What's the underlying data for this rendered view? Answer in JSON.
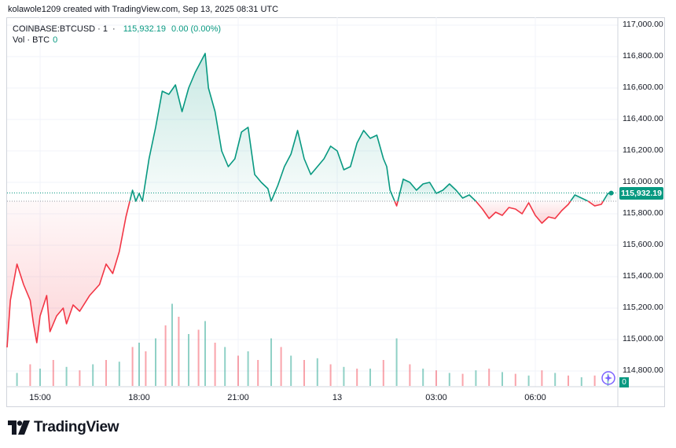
{
  "header": {
    "attribution": "kolawole1209 created with TradingView.com, Sep 13, 2025 08:31 UTC"
  },
  "legend": {
    "symbol": "COINBASE:BTCUSD",
    "interval": "1",
    "price": "115,932.19",
    "change": "0.00 (0.00%)",
    "volume_label": "Vol · BTC",
    "volume_value": "0"
  },
  "price_badge": "115,932.19",
  "volume_badge": "0",
  "branding": {
    "name": "TradingView",
    "logo": "tradingview-logo-icon"
  },
  "colors": {
    "up": "#089981",
    "down": "#f23645",
    "grid": "#f0f3fa",
    "text": "#131722"
  },
  "chart_data": {
    "type": "line",
    "title": "",
    "xlabel": "",
    "ylabel": "",
    "x_tick_labels": [
      "15:00",
      "18:00",
      "21:00",
      "13",
      "03:00",
      "06:00"
    ],
    "x_tick_hours": [
      1,
      4,
      7,
      10,
      13,
      16
    ],
    "y_tick_labels": [
      "117,000.00",
      "116,800.00",
      "116,600.00",
      "116,400.00",
      "116,200.00",
      "116,000.00",
      "115,800.00",
      "115,600.00",
      "115,400.00",
      "115,200.00",
      "115,000.00",
      "114,800.00"
    ],
    "y_ticks": [
      117000,
      116800,
      116600,
      116400,
      116200,
      116000,
      115800,
      115600,
      115400,
      115200,
      115000,
      114800
    ],
    "ylim": [
      114700,
      117050
    ],
    "xlim": [
      0,
      18.5
    ],
    "baseline": 115880,
    "last_price": 115932.19,
    "series": [
      {
        "values": [
          [
            0.0,
            114950
          ],
          [
            0.1,
            115250
          ],
          [
            0.3,
            115480
          ],
          [
            0.5,
            115350
          ],
          [
            0.7,
            115250
          ],
          [
            0.8,
            115100
          ],
          [
            0.9,
            114980
          ],
          [
            1.0,
            115150
          ],
          [
            1.2,
            115280
          ],
          [
            1.3,
            115050
          ],
          [
            1.5,
            115150
          ],
          [
            1.7,
            115200
          ],
          [
            1.8,
            115100
          ],
          [
            2.0,
            115220
          ],
          [
            2.2,
            115180
          ],
          [
            2.5,
            115280
          ],
          [
            2.8,
            115350
          ],
          [
            3.0,
            115480
          ],
          [
            3.2,
            115420
          ],
          [
            3.4,
            115560
          ],
          [
            3.6,
            115780
          ],
          [
            3.8,
            115950
          ],
          [
            3.9,
            115880
          ],
          [
            4.0,
            115930
          ],
          [
            4.1,
            115880
          ],
          [
            4.3,
            116150
          ],
          [
            4.5,
            116350
          ],
          [
            4.7,
            116580
          ],
          [
            4.9,
            116560
          ],
          [
            5.1,
            116620
          ],
          [
            5.3,
            116450
          ],
          [
            5.5,
            116600
          ],
          [
            5.7,
            116700
          ],
          [
            5.9,
            116780
          ],
          [
            6.0,
            116820
          ],
          [
            6.1,
            116600
          ],
          [
            6.3,
            116450
          ],
          [
            6.5,
            116200
          ],
          [
            6.7,
            116100
          ],
          [
            6.9,
            116150
          ],
          [
            7.1,
            116320
          ],
          [
            7.3,
            116350
          ],
          [
            7.5,
            116050
          ],
          [
            7.7,
            116000
          ],
          [
            7.9,
            115960
          ],
          [
            8.0,
            115880
          ],
          [
            8.2,
            115980
          ],
          [
            8.4,
            116100
          ],
          [
            8.6,
            116180
          ],
          [
            8.8,
            116330
          ],
          [
            9.0,
            116150
          ],
          [
            9.2,
            116050
          ],
          [
            9.4,
            116100
          ],
          [
            9.6,
            116150
          ],
          [
            9.8,
            116230
          ],
          [
            10.0,
            116200
          ],
          [
            10.2,
            116080
          ],
          [
            10.4,
            116100
          ],
          [
            10.6,
            116250
          ],
          [
            10.8,
            116330
          ],
          [
            11.0,
            116280
          ],
          [
            11.2,
            116300
          ],
          [
            11.4,
            116150
          ],
          [
            11.5,
            116100
          ],
          [
            11.6,
            115950
          ],
          [
            11.8,
            115850
          ],
          [
            12.0,
            116020
          ],
          [
            12.2,
            116000
          ],
          [
            12.4,
            115950
          ],
          [
            12.6,
            115990
          ],
          [
            12.8,
            116000
          ],
          [
            13.0,
            115930
          ],
          [
            13.2,
            115950
          ],
          [
            13.4,
            115990
          ],
          [
            13.6,
            115950
          ],
          [
            13.8,
            115900
          ],
          [
            14.0,
            115920
          ],
          [
            14.2,
            115880
          ],
          [
            14.4,
            115830
          ],
          [
            14.6,
            115770
          ],
          [
            14.8,
            115810
          ],
          [
            15.0,
            115790
          ],
          [
            15.2,
            115840
          ],
          [
            15.4,
            115830
          ],
          [
            15.6,
            115800
          ],
          [
            15.8,
            115870
          ],
          [
            16.0,
            115790
          ],
          [
            16.2,
            115740
          ],
          [
            16.4,
            115780
          ],
          [
            16.6,
            115770
          ],
          [
            16.8,
            115820
          ],
          [
            17.0,
            115860
          ],
          [
            17.2,
            115920
          ],
          [
            17.4,
            115900
          ],
          [
            17.6,
            115880
          ],
          [
            17.8,
            115850
          ],
          [
            18.0,
            115860
          ],
          [
            18.2,
            115930
          ],
          [
            18.3,
            115932
          ]
        ]
      }
    ],
    "volume": {
      "max_height_hint": "relative",
      "bars": [
        [
          0.3,
          0.15
        ],
        [
          0.7,
          0.25
        ],
        [
          1.0,
          0.2
        ],
        [
          1.4,
          0.3
        ],
        [
          1.8,
          0.22
        ],
        [
          2.2,
          0.18
        ],
        [
          2.6,
          0.25
        ],
        [
          3.0,
          0.3
        ],
        [
          3.4,
          0.28
        ],
        [
          3.8,
          0.45
        ],
        [
          4.0,
          0.5
        ],
        [
          4.2,
          0.4
        ],
        [
          4.5,
          0.55
        ],
        [
          4.8,
          0.7
        ],
        [
          5.0,
          0.95
        ],
        [
          5.2,
          0.8
        ],
        [
          5.5,
          0.6
        ],
        [
          5.8,
          0.65
        ],
        [
          6.0,
          0.75
        ],
        [
          6.3,
          0.5
        ],
        [
          6.6,
          0.45
        ],
        [
          7.0,
          0.35
        ],
        [
          7.3,
          0.4
        ],
        [
          7.6,
          0.3
        ],
        [
          8.0,
          0.55
        ],
        [
          8.3,
          0.45
        ],
        [
          8.6,
          0.35
        ],
        [
          9.0,
          0.3
        ],
        [
          9.4,
          0.32
        ],
        [
          9.8,
          0.25
        ],
        [
          10.2,
          0.22
        ],
        [
          10.6,
          0.2
        ],
        [
          11.0,
          0.2
        ],
        [
          11.4,
          0.3
        ],
        [
          11.8,
          0.55
        ],
        [
          12.2,
          0.25
        ],
        [
          12.6,
          0.2
        ],
        [
          13.0,
          0.18
        ],
        [
          13.4,
          0.15
        ],
        [
          13.8,
          0.14
        ],
        [
          14.2,
          0.18
        ],
        [
          14.6,
          0.2
        ],
        [
          15.0,
          0.16
        ],
        [
          15.4,
          0.14
        ],
        [
          15.8,
          0.12
        ],
        [
          16.2,
          0.18
        ],
        [
          16.6,
          0.15
        ],
        [
          17.0,
          0.12
        ],
        [
          17.4,
          0.1
        ],
        [
          17.8,
          0.12
        ],
        [
          18.2,
          0.14
        ]
      ]
    }
  }
}
